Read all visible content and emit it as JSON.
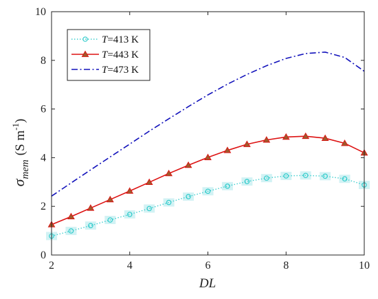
{
  "chart_data": {
    "type": "line",
    "xlabel": "DL",
    "ylabel": {
      "symbol": "σ",
      "subscript": "mem",
      "unit": "(S m",
      "unit_exp": "-1",
      "unit_close": ")"
    },
    "xlim": [
      2,
      10
    ],
    "ylim": [
      0,
      10
    ],
    "xticks": [
      2,
      4,
      6,
      8,
      10
    ],
    "yticks": [
      0,
      2,
      4,
      6,
      8,
      10
    ],
    "grid": false,
    "legend_position": "top-left",
    "series": [
      {
        "name": "T=413 K",
        "name_var": "T",
        "name_rest": "=413 K",
        "color": "#33cccc",
        "line_style": "dotted",
        "marker": "circle",
        "highlight_color": "#d2f2f4",
        "x": [
          2,
          2.5,
          3,
          3.5,
          4,
          4.5,
          5,
          5.5,
          6,
          6.5,
          7,
          7.5,
          8,
          8.5,
          9,
          9.5,
          10
        ],
        "values": [
          0.78,
          0.99,
          1.21,
          1.44,
          1.67,
          1.91,
          2.16,
          2.4,
          2.62,
          2.83,
          3.02,
          3.16,
          3.25,
          3.27,
          3.24,
          3.13,
          2.88
        ]
      },
      {
        "name": "T=443 K",
        "name_var": "T",
        "name_rest": "=443 K",
        "color": "#dd1111",
        "line_style": "solid",
        "marker": "triangle",
        "marker_fill": "#a05a2c",
        "x": [
          2,
          2.5,
          3,
          3.5,
          4,
          4.5,
          5,
          5.5,
          6,
          6.5,
          7,
          7.5,
          8,
          8.5,
          9,
          9.5,
          10
        ],
        "values": [
          1.25,
          1.58,
          1.93,
          2.28,
          2.63,
          2.99,
          3.35,
          3.69,
          4.01,
          4.3,
          4.55,
          4.73,
          4.85,
          4.88,
          4.8,
          4.59,
          4.2
        ]
      },
      {
        "name": "T=473 K",
        "name_var": "T",
        "name_rest": "=473 K",
        "color": "#1111bb",
        "line_style": "dashdot",
        "marker": "none",
        "x": [
          2,
          2.5,
          3,
          3.5,
          4,
          4.5,
          5,
          5.5,
          6,
          6.5,
          7,
          7.5,
          8,
          8.5,
          9,
          9.5,
          10
        ],
        "values": [
          2.42,
          2.96,
          3.5,
          4.03,
          4.56,
          5.09,
          5.6,
          6.1,
          6.58,
          7.02,
          7.42,
          7.78,
          8.08,
          8.28,
          8.34,
          8.12,
          7.55
        ]
      }
    ]
  }
}
